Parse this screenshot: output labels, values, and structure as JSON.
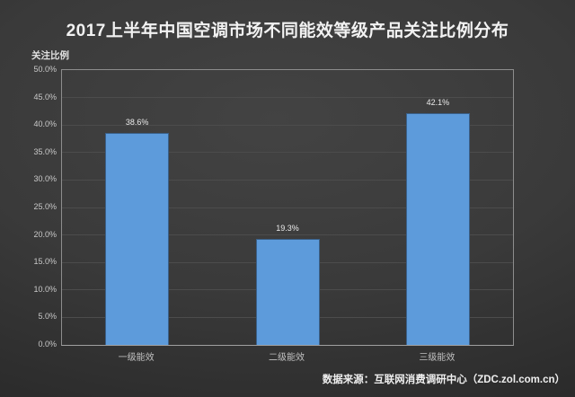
{
  "chart_data": {
    "type": "bar",
    "title": "2017上半年中国空调市场不同能效等级产品关注比例分布",
    "ylabel": "关注比例",
    "xlabel": "",
    "categories": [
      "一级能效",
      "二级能效",
      "三级能效"
    ],
    "values": [
      38.6,
      19.3,
      42.1
    ],
    "value_labels": [
      "38.6%",
      "19.3%",
      "42.1%"
    ],
    "ylim": [
      0,
      50
    ],
    "ytick_step": 5,
    "ytick_labels": [
      "50.0%",
      "45.0%",
      "40.0%",
      "35.0%",
      "30.0%",
      "25.0%",
      "20.0%",
      "15.0%",
      "10.0%",
      "5.0%",
      "0.0%"
    ],
    "grid": "horizontal",
    "legend_position": "none",
    "source": "数据来源：互联网消费调研中心（ZDC.zol.com.cn）",
    "colors": {
      "bar_fill": "#5D9BDB",
      "bar_border": "#3A6089",
      "background_center": "#434343",
      "background_edge": "#252525",
      "title_text": "#f2f2f2",
      "gridline": "#4c4c4c",
      "plot_border": "#8d8d8d"
    }
  }
}
